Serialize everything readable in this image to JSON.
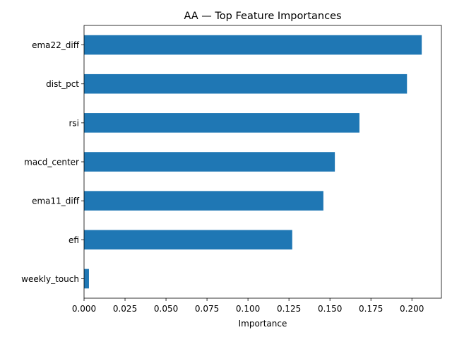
{
  "chart_data": {
    "type": "bar",
    "orientation": "horizontal",
    "title": "AA — Top Feature Importances",
    "xlabel": "Importance",
    "ylabel": "",
    "categories": [
      "ema22_diff",
      "dist_pct",
      "rsi",
      "macd_center",
      "ema11_diff",
      "efi",
      "weekly_touch"
    ],
    "values": [
      0.206,
      0.197,
      0.168,
      0.153,
      0.146,
      0.127,
      0.003
    ],
    "xlim": [
      0.0,
      0.218
    ],
    "xticks": [
      0.0,
      0.025,
      0.05,
      0.075,
      0.1,
      0.125,
      0.15,
      0.175,
      0.2
    ],
    "xtick_labels": [
      "0.000",
      "0.025",
      "0.050",
      "0.075",
      "0.100",
      "0.125",
      "0.150",
      "0.175",
      "0.200"
    ],
    "grid": false,
    "legend": "none",
    "bar_color": "#1f77b4"
  }
}
